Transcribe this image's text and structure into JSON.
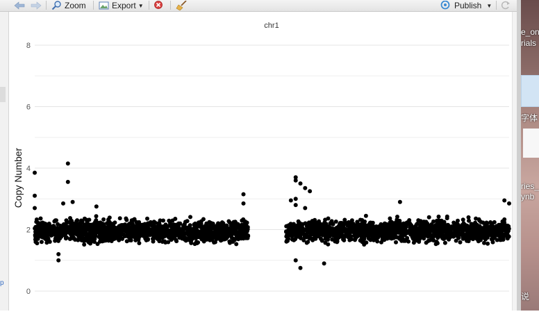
{
  "toolbar": {
    "zoom_label": "Zoom",
    "export_label": "Export",
    "publish_label": "Publish"
  },
  "chart_data": {
    "type": "scatter",
    "title": "chr1",
    "xlabel": "",
    "ylabel": "Copy Number",
    "ylim": [
      0,
      8
    ],
    "yticks": [
      "0",
      "2",
      "4",
      "6",
      "8"
    ],
    "grid": true,
    "point_color": "#000000",
    "segments": [
      {
        "x_start": 0,
        "x_end": 0.45,
        "typical_value": 1.95,
        "spread": 0.3
      },
      {
        "x_start": 0.53,
        "x_end": 1.0,
        "typical_value": 1.95,
        "spread": 0.3
      }
    ],
    "outliers": [
      {
        "x": 0.0,
        "y": 3.85
      },
      {
        "x": 0.0,
        "y": 3.1
      },
      {
        "x": 0.0,
        "y": 2.7
      },
      {
        "x": 0.07,
        "y": 4.15
      },
      {
        "x": 0.07,
        "y": 3.55
      },
      {
        "x": 0.05,
        "y": 1.2
      },
      {
        "x": 0.05,
        "y": 1.0
      },
      {
        "x": 0.06,
        "y": 2.85
      },
      {
        "x": 0.08,
        "y": 2.9
      },
      {
        "x": 0.13,
        "y": 2.75
      },
      {
        "x": 0.44,
        "y": 3.15
      },
      {
        "x": 0.44,
        "y": 2.85
      },
      {
        "x": 0.55,
        "y": 3.7
      },
      {
        "x": 0.55,
        "y": 3.6
      },
      {
        "x": 0.56,
        "y": 3.5
      },
      {
        "x": 0.57,
        "y": 3.35
      },
      {
        "x": 0.58,
        "y": 3.25
      },
      {
        "x": 0.55,
        "y": 3.0
      },
      {
        "x": 0.54,
        "y": 2.95
      },
      {
        "x": 0.55,
        "y": 2.8
      },
      {
        "x": 0.57,
        "y": 2.7
      },
      {
        "x": 0.56,
        "y": 0.75
      },
      {
        "x": 0.61,
        "y": 0.9
      },
      {
        "x": 0.55,
        "y": 1.0
      },
      {
        "x": 0.77,
        "y": 2.9
      },
      {
        "x": 1.0,
        "y": 2.85
      },
      {
        "x": 0.99,
        "y": 2.95
      }
    ]
  },
  "desktop": {
    "labels": [
      "e_onl",
      "rials",
      "字体",
      "ries_",
      "ynb",
      "说"
    ]
  }
}
